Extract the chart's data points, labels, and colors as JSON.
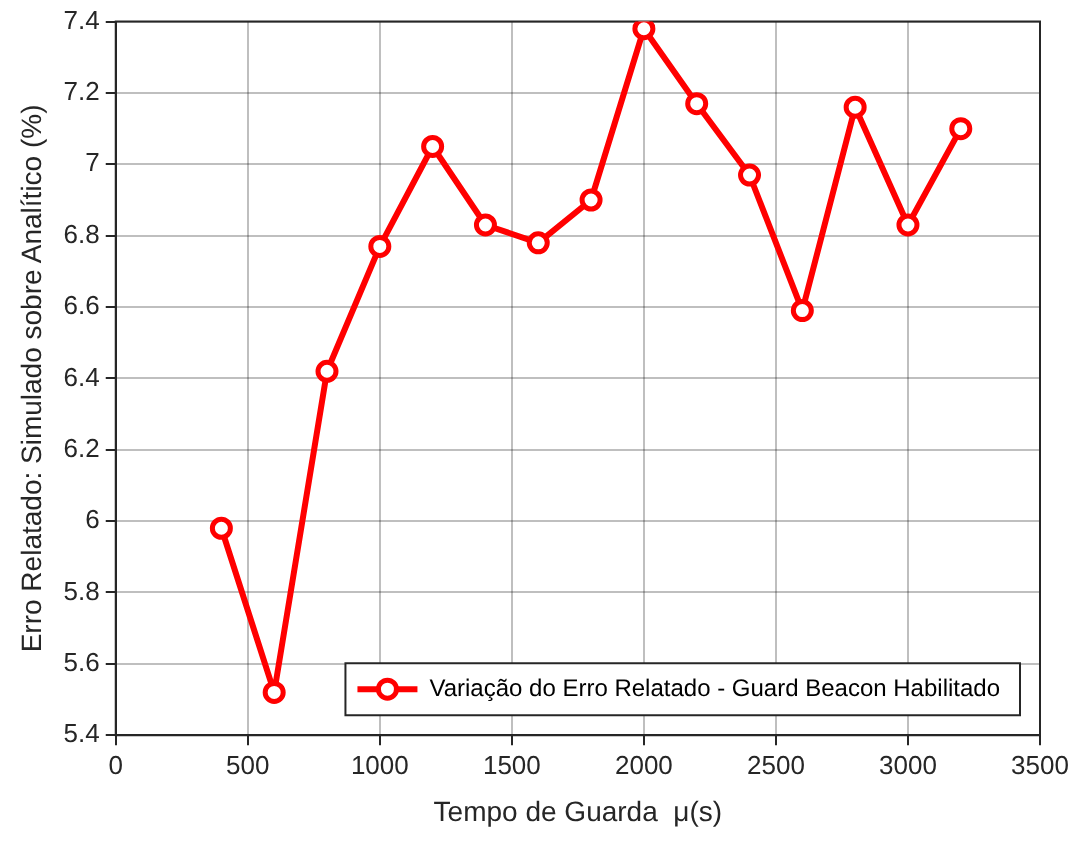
{
  "chart_data": {
    "type": "line",
    "xlabel": "Tempo de Guarda  μ(s)",
    "ylabel": "Erro Relatado: Simulado sobre Analítico (%)",
    "x": [
      400,
      600,
      800,
      1000,
      1200,
      1400,
      1600,
      1800,
      2000,
      2200,
      2400,
      2600,
      2800,
      3000,
      3200
    ],
    "series": [
      {
        "name": "Variação do Erro Relatado - Guard Beacon Habilitado",
        "color": "#ff0000",
        "values": [
          5.98,
          5.52,
          6.42,
          6.77,
          7.05,
          6.83,
          6.78,
          6.9,
          7.38,
          7.17,
          6.97,
          6.59,
          7.16,
          6.83,
          7.1
        ]
      }
    ],
    "xlim": [
      0,
      3500
    ],
    "xticks": [
      0,
      500,
      1000,
      1500,
      2000,
      2500,
      3000,
      3500
    ],
    "ylim": [
      5.4,
      7.4
    ],
    "yticks": [
      5.4,
      5.6,
      5.8,
      6,
      6.2,
      6.4,
      6.6,
      6.8,
      7,
      7.2,
      7.4
    ],
    "grid": true,
    "legend": "bottom right",
    "marker": "circle",
    "line_style": "solid"
  }
}
